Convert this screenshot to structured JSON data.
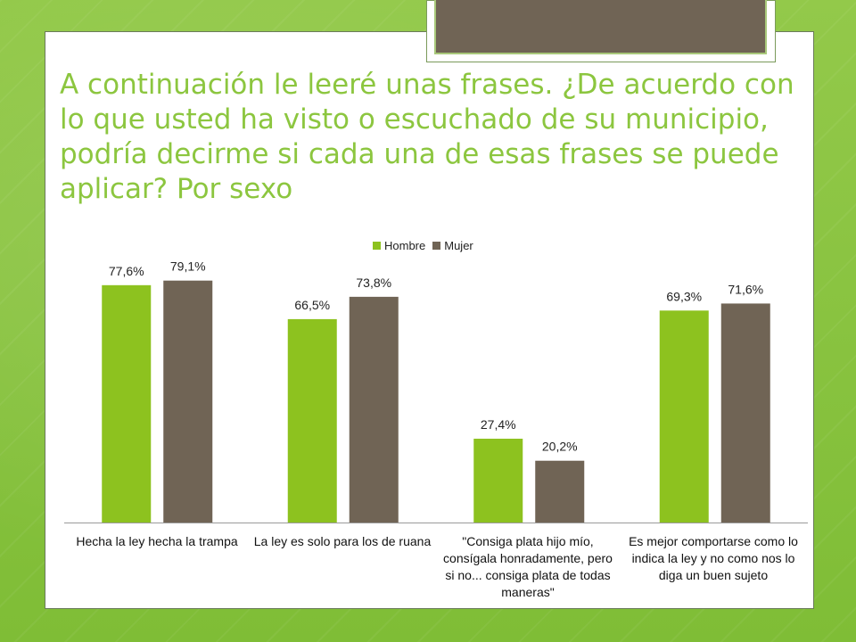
{
  "slide": {
    "title": "A continuación le leeré unas frases. ¿De acuerdo con lo que usted ha visto o escuchado de su municipio, podría decirme si cada una de esas frases se puede aplicar? Por sexo"
  },
  "colors": {
    "background": "#8cc63f",
    "title": "#8cc63f",
    "hombre": "#8dc21f",
    "mujer": "#706455"
  },
  "chart_data": {
    "type": "bar",
    "categories": [
      "Hecha la ley hecha la trampa",
      "La ley es solo para los de ruana",
      "\"Consiga plata hijo mío, consígala honradamente, pero si no... consiga plata de todas maneras\"",
      "Es mejor comportarse como lo indica la ley y no como nos lo diga un buen sujeto"
    ],
    "series": [
      {
        "name": "Hombre",
        "values": [
          77.6,
          66.5,
          27.4,
          69.3
        ],
        "labels": [
          "77,6%",
          "66,5%",
          "27,4%",
          "69,3%"
        ]
      },
      {
        "name": "Mujer",
        "values": [
          79.1,
          73.8,
          20.2,
          71.6
        ],
        "labels": [
          "79,1%",
          "73,8%",
          "20,2%",
          "71,6%"
        ]
      }
    ],
    "ylim": [
      0,
      100
    ],
    "grid": false,
    "legend": "top-center"
  }
}
